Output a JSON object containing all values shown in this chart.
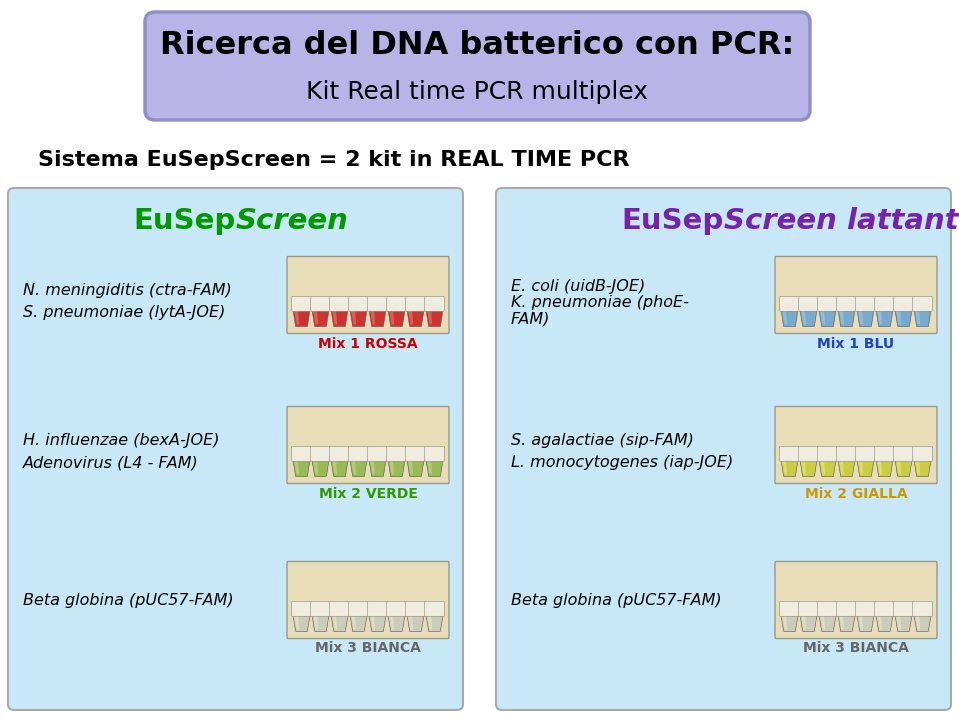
{
  "title_line1": "Ricerca del DNA batterico con PCR:",
  "title_line2": "Kit Real time PCR multiplex",
  "subtitle": "Sistema EuSepScreen = 2 kit in REAL TIME PCR",
  "title_bg": "#b8b4e8",
  "title_border": "#9090c8",
  "bg_color": "#ffffff",
  "panel_bg": "#c8e8f8",
  "panel_border": "#aaaaaa",
  "left_panel_title_normal": "EuSep",
  "left_panel_title_italic": "Screen",
  "right_panel_title_normal": "EuSep",
  "right_panel_title_italic": "Screen lattanti",
  "left_panel_title_color": "#009900",
  "right_panel_title_color": "#7722aa",
  "left_rows": [
    {
      "text_line1": "N. meningiditis (ctra-FAM)",
      "text_line2": "S. pneumoniae (lytA-JOE)",
      "label": "Mix 1 ROSSA",
      "label_color": "#cc0000",
      "tube_color": "#cc3333",
      "tube_light": "#ee8888",
      "tube_bg": "#e8ddb8"
    },
    {
      "text_line1": "H. influenzae (bexA-JOE)",
      "text_line2": "Adenovirus (L4 - FAM)",
      "label": "Mix 2 VERDE",
      "label_color": "#339900",
      "tube_color": "#99bb55",
      "tube_light": "#ccdd99",
      "tube_bg": "#e8ddb8"
    },
    {
      "text_line1": "Beta globina (pUC57-FAM)",
      "text_line2": "",
      "label": "Mix 3 BIANCA",
      "label_color": "#666666",
      "tube_color": "#ccccbb",
      "tube_light": "#eeeecc",
      "tube_bg": "#e8ddb8"
    }
  ],
  "right_rows": [
    {
      "text_line1": "E. coli (uidB-JOE)",
      "text_line2": "K. pneumoniae (phoE-",
      "text_line3": "FAM)",
      "label": "Mix 1 BLU",
      "label_color": "#2244bb",
      "tube_color": "#77aacc",
      "tube_light": "#aaccee",
      "tube_bg": "#e8ddb8"
    },
    {
      "text_line1": "S. agalactiae (sip-FAM)",
      "text_line2": "L. monocytogenes (iap-JOE)",
      "text_line3": "",
      "label": "Mix 2 GIALLA",
      "label_color": "#cc9900",
      "tube_color": "#cccc44",
      "tube_light": "#eeee99",
      "tube_bg": "#e8ddb8"
    },
    {
      "text_line1": "Beta globina (pUC57-FAM)",
      "text_line2": "",
      "text_line3": "",
      "label": "Mix 3 BIANCA",
      "label_color": "#666666",
      "tube_color": "#ccccbb",
      "tube_light": "#eeeecc",
      "tube_bg": "#e8ddb8"
    }
  ]
}
